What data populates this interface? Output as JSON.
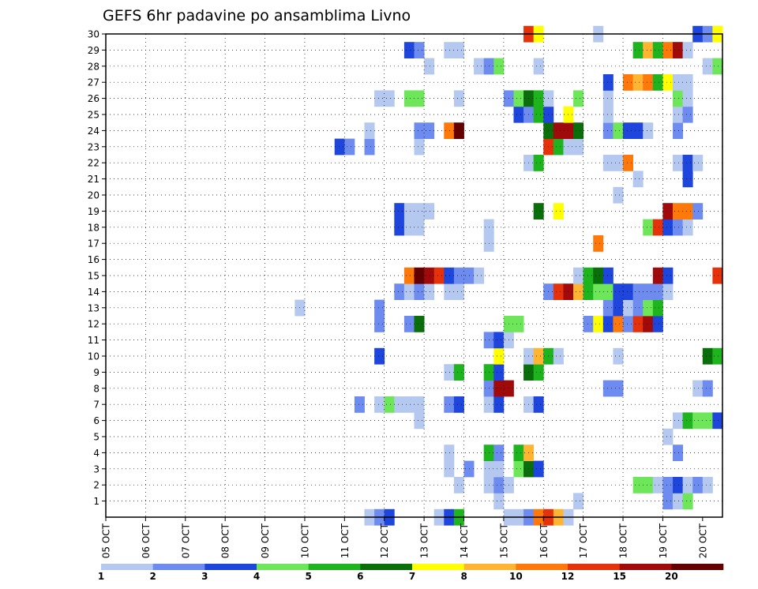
{
  "chart_data": {
    "type": "heatmap",
    "title": "GEFS 6hr padavine po ansamblima Livno",
    "x_ticks": [
      "05 OCT",
      "06 OCT",
      "07 OCT",
      "08 OCT",
      "09 OCT",
      "10 OCT",
      "11 OCT",
      "12 OCT",
      "13 OCT",
      "14 OCT",
      "15 OCT",
      "16 OCT",
      "17 OCT",
      "18 OCT",
      "19 OCT",
      "20 OCT"
    ],
    "y_ticks": [
      1,
      2,
      3,
      4,
      5,
      6,
      7,
      8,
      9,
      10,
      11,
      12,
      13,
      14,
      15,
      16,
      17,
      18,
      19,
      20,
      21,
      22,
      23,
      24,
      25,
      26,
      27,
      28,
      29,
      30
    ],
    "x_range_steps": [
      0,
      61
    ],
    "y_range": [
      0,
      30
    ],
    "steps_per_day": 4,
    "grid": true,
    "legend": {
      "placement": "bottom",
      "colors": [
        "#b4c8f0",
        "#6e8cf0",
        "#1e46dc",
        "#6ee65a",
        "#1eb41e",
        "#0a6e0a",
        "#ffff00",
        "#ffb432",
        "#ff780a",
        "#e6320a",
        "#a00a0a",
        "#640000"
      ],
      "labels": [
        "1",
        "2",
        "3",
        "4",
        "5",
        "6",
        "7",
        "8",
        "10",
        "12",
        "15",
        "20"
      ]
    },
    "cells": [
      {
        "member": 0,
        "cells": [
          [
            26,
            1
          ],
          [
            27,
            2
          ],
          [
            28,
            3
          ],
          [
            33,
            1
          ],
          [
            34,
            3
          ],
          [
            35,
            5
          ],
          [
            40,
            1
          ],
          [
            41,
            1
          ],
          [
            42,
            2
          ],
          [
            43,
            9
          ],
          [
            44,
            10
          ],
          [
            45,
            8
          ],
          [
            46,
            1
          ]
        ]
      },
      {
        "member": 1,
        "cells": [
          [
            39,
            1
          ],
          [
            47,
            1
          ],
          [
            56,
            2
          ],
          [
            57,
            1
          ],
          [
            58,
            4
          ]
        ]
      },
      {
        "member": 2,
        "cells": [
          [
            35,
            1
          ],
          [
            38,
            1
          ],
          [
            39,
            2
          ],
          [
            40,
            1
          ],
          [
            53,
            4
          ],
          [
            54,
            4
          ],
          [
            55,
            1
          ],
          [
            56,
            2
          ],
          [
            57,
            3
          ],
          [
            58,
            1
          ],
          [
            59,
            2
          ],
          [
            60,
            1
          ]
        ]
      },
      {
        "member": 3,
        "cells": [
          [
            34,
            1
          ],
          [
            36,
            2
          ],
          [
            38,
            1
          ],
          [
            39,
            1
          ],
          [
            41,
            4
          ],
          [
            42,
            6
          ],
          [
            43,
            3
          ]
        ]
      },
      {
        "member": 4,
        "cells": [
          [
            34,
            1
          ],
          [
            38,
            5
          ],
          [
            39,
            2
          ],
          [
            41,
            5
          ],
          [
            42,
            8
          ],
          [
            57,
            2
          ]
        ]
      },
      {
        "member": 5,
        "cells": [
          [
            56,
            1
          ]
        ]
      },
      {
        "member": 6,
        "cells": [
          [
            31,
            1
          ],
          [
            57,
            1
          ],
          [
            58,
            5
          ],
          [
            59,
            4
          ],
          [
            60,
            4
          ],
          [
            61,
            3
          ]
        ]
      },
      {
        "member": 7,
        "cells": [
          [
            25,
            2
          ],
          [
            27,
            1
          ],
          [
            28,
            4
          ],
          [
            29,
            1
          ],
          [
            30,
            1
          ],
          [
            31,
            1
          ],
          [
            34,
            2
          ],
          [
            35,
            3
          ],
          [
            38,
            1
          ],
          [
            39,
            3
          ],
          [
            42,
            1
          ],
          [
            43,
            3
          ]
        ]
      },
      {
        "member": 8,
        "cells": [
          [
            38,
            2
          ],
          [
            39,
            11
          ],
          [
            40,
            11
          ],
          [
            50,
            2
          ],
          [
            51,
            2
          ],
          [
            59,
            1
          ],
          [
            60,
            2
          ]
        ]
      },
      {
        "member": 9,
        "cells": [
          [
            34,
            1
          ],
          [
            35,
            5
          ],
          [
            38,
            5
          ],
          [
            39,
            3
          ],
          [
            42,
            6
          ],
          [
            43,
            5
          ]
        ]
      },
      {
        "member": 10,
        "cells": [
          [
            27,
            3
          ],
          [
            39,
            7
          ],
          [
            42,
            1
          ],
          [
            43,
            8
          ],
          [
            44,
            5
          ],
          [
            45,
            1
          ],
          [
            51,
            1
          ],
          [
            60,
            6
          ],
          [
            61,
            5
          ]
        ]
      },
      {
        "member": 11,
        "cells": [
          [
            38,
            2
          ],
          [
            39,
            3
          ],
          [
            40,
            1
          ]
        ]
      },
      {
        "member": 12,
        "cells": [
          [
            27,
            2
          ],
          [
            30,
            2
          ],
          [
            31,
            6
          ],
          [
            40,
            4
          ],
          [
            41,
            4
          ],
          [
            48,
            2
          ],
          [
            49,
            7
          ],
          [
            50,
            3
          ],
          [
            51,
            9
          ],
          [
            52,
            2
          ],
          [
            53,
            10
          ],
          [
            54,
            11
          ],
          [
            55,
            3
          ]
        ]
      },
      {
        "member": 13,
        "cells": [
          [
            19,
            1
          ],
          [
            27,
            2
          ],
          [
            50,
            2
          ],
          [
            51,
            3
          ],
          [
            52,
            1
          ],
          [
            53,
            2
          ],
          [
            54,
            4
          ],
          [
            55,
            5
          ]
        ]
      },
      {
        "member": 14,
        "cells": [
          [
            29,
            2
          ],
          [
            30,
            1
          ],
          [
            31,
            2
          ],
          [
            32,
            1
          ],
          [
            34,
            1
          ],
          [
            35,
            1
          ],
          [
            44,
            2
          ],
          [
            45,
            10
          ],
          [
            46,
            11
          ],
          [
            47,
            8
          ],
          [
            48,
            5
          ],
          [
            49,
            4
          ],
          [
            50,
            4
          ],
          [
            51,
            3
          ],
          [
            52,
            3
          ],
          [
            53,
            2
          ],
          [
            54,
            2
          ],
          [
            55,
            2
          ],
          [
            56,
            1
          ]
        ]
      },
      {
        "member": 15,
        "cells": [
          [
            30,
            9
          ],
          [
            31,
            12
          ],
          [
            32,
            11
          ],
          [
            33,
            10
          ],
          [
            34,
            3
          ],
          [
            35,
            2
          ],
          [
            36,
            2
          ],
          [
            37,
            1
          ],
          [
            47,
            1
          ],
          [
            48,
            5
          ],
          [
            49,
            6
          ],
          [
            50,
            3
          ],
          [
            55,
            11
          ],
          [
            56,
            3
          ],
          [
            61,
            10
          ]
        ]
      },
      {
        "member": 16,
        "cells": []
      },
      {
        "member": 17,
        "cells": [
          [
            38,
            1
          ],
          [
            49,
            9
          ]
        ]
      },
      {
        "member": 18,
        "cells": [
          [
            29,
            3
          ],
          [
            30,
            1
          ],
          [
            31,
            1
          ],
          [
            38,
            1
          ],
          [
            54,
            4
          ],
          [
            55,
            10
          ],
          [
            56,
            3
          ],
          [
            57,
            2
          ],
          [
            58,
            1
          ]
        ]
      },
      {
        "member": 19,
        "cells": [
          [
            29,
            3
          ],
          [
            30,
            1
          ],
          [
            31,
            1
          ],
          [
            32,
            1
          ],
          [
            43,
            6
          ],
          [
            45,
            7
          ],
          [
            56,
            11
          ],
          [
            57,
            9
          ],
          [
            58,
            9
          ],
          [
            59,
            2
          ]
        ]
      },
      {
        "member": 20,
        "cells": [
          [
            51,
            1
          ]
        ]
      },
      {
        "member": 21,
        "cells": [
          [
            53,
            1
          ],
          [
            58,
            3
          ]
        ]
      },
      {
        "member": 22,
        "cells": [
          [
            42,
            1
          ],
          [
            43,
            5
          ],
          [
            50,
            1
          ],
          [
            51,
            1
          ],
          [
            52,
            9
          ],
          [
            57,
            1
          ],
          [
            58,
            3
          ],
          [
            59,
            1
          ]
        ]
      },
      {
        "member": 23,
        "cells": [
          [
            23,
            3
          ],
          [
            24,
            2
          ],
          [
            26,
            2
          ],
          [
            31,
            1
          ],
          [
            44,
            10
          ],
          [
            45,
            5
          ],
          [
            46,
            1
          ],
          [
            47,
            1
          ]
        ]
      },
      {
        "member": 24,
        "cells": [
          [
            26,
            1
          ],
          [
            31,
            2
          ],
          [
            32,
            2
          ],
          [
            34,
            9
          ],
          [
            35,
            12
          ],
          [
            44,
            6
          ],
          [
            45,
            11
          ],
          [
            46,
            11
          ],
          [
            47,
            6
          ],
          [
            50,
            2
          ],
          [
            51,
            4
          ],
          [
            52,
            3
          ],
          [
            53,
            3
          ],
          [
            54,
            1
          ],
          [
            57,
            2
          ]
        ]
      },
      {
        "member": 25,
        "cells": [
          [
            41,
            3
          ],
          [
            42,
            2
          ],
          [
            43,
            5
          ],
          [
            44,
            3
          ],
          [
            46,
            7
          ],
          [
            50,
            1
          ],
          [
            57,
            1
          ],
          [
            58,
            2
          ]
        ]
      },
      {
        "member": 26,
        "cells": [
          [
            27,
            1
          ],
          [
            28,
            1
          ],
          [
            30,
            4
          ],
          [
            31,
            4
          ],
          [
            35,
            1
          ],
          [
            40,
            2
          ],
          [
            41,
            4
          ],
          [
            42,
            6
          ],
          [
            43,
            5
          ],
          [
            44,
            1
          ],
          [
            47,
            4
          ],
          [
            50,
            1
          ],
          [
            57,
            4
          ],
          [
            58,
            1
          ]
        ]
      },
      {
        "member": 27,
        "cells": [
          [
            50,
            3
          ],
          [
            52,
            9
          ],
          [
            53,
            8
          ],
          [
            54,
            9
          ],
          [
            55,
            5
          ],
          [
            56,
            7
          ],
          [
            57,
            1
          ],
          [
            58,
            1
          ]
        ]
      },
      {
        "member": 28,
        "cells": [
          [
            32,
            1
          ],
          [
            37,
            1
          ],
          [
            38,
            2
          ],
          [
            39,
            4
          ],
          [
            43,
            1
          ],
          [
            60,
            1
          ],
          [
            61,
            4
          ]
        ]
      },
      {
        "member": 29,
        "cells": [
          [
            30,
            3
          ],
          [
            31,
            2
          ],
          [
            34,
            1
          ],
          [
            35,
            1
          ],
          [
            53,
            5
          ],
          [
            54,
            8
          ],
          [
            55,
            5
          ],
          [
            56,
            9
          ],
          [
            57,
            11
          ],
          [
            58,
            1
          ]
        ]
      },
      {
        "member": 30,
        "cells": [
          [
            42,
            10
          ],
          [
            43,
            7
          ],
          [
            49,
            1
          ],
          [
            59,
            3
          ],
          [
            60,
            2
          ],
          [
            61,
            7
          ]
        ]
      }
    ]
  }
}
